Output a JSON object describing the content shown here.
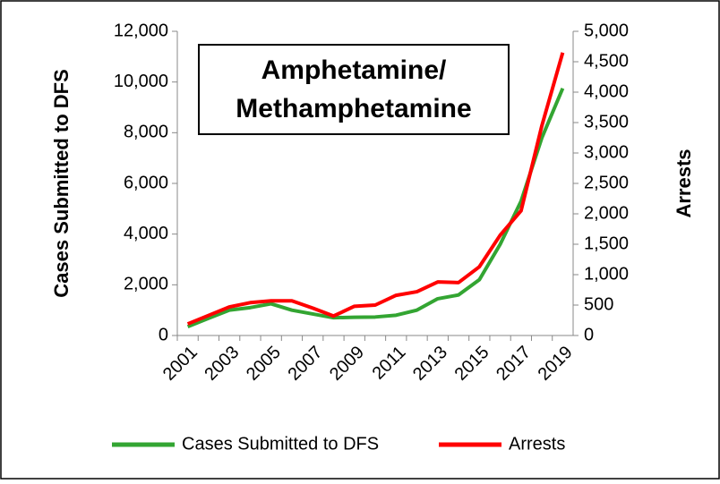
{
  "chart_data": {
    "type": "line",
    "title": [
      "Amphetamine/",
      "Methamphetamine"
    ],
    "y_label": "Cases Submitted to DFS",
    "y2_label": "Arrests",
    "categories": [
      "2001",
      null,
      "2003",
      null,
      "2005",
      null,
      "2007",
      null,
      "2009",
      null,
      "2011",
      null,
      "2013",
      null,
      "2015",
      null,
      "2017",
      null,
      "2019"
    ],
    "series": [
      {
        "name": "Cases Submitted to DFS",
        "color": "#33a532",
        "values": [
          350,
          680,
          1000,
          1100,
          1250,
          1000,
          850,
          700,
          720,
          730,
          800,
          1000,
          1450,
          1600,
          2200,
          3600,
          5300,
          7800,
          9750
        ]
      },
      {
        "name": "Arrests",
        "color": "#ff0000",
        "axis": "y2",
        "values": [
          190,
          330,
          470,
          540,
          570,
          570,
          450,
          320,
          480,
          500,
          660,
          720,
          880,
          870,
          1130,
          1650,
          2050,
          3450,
          4650
        ]
      }
    ],
    "ylim": [
      0,
      12000
    ],
    "yticks": [
      0,
      {
        "value": 2000,
        "label": "2,000"
      },
      {
        "value": 4000,
        "label": "4,000"
      },
      {
        "value": 6000,
        "label": "6,000"
      },
      {
        "value": 8000,
        "label": "8,000"
      },
      {
        "value": 10000,
        "label": "10,000"
      },
      {
        "value": 12000,
        "label": "12,000"
      }
    ],
    "y2lim": [
      0,
      5000
    ],
    "y2ticks": [
      0,
      500,
      {
        "value": 1000,
        "label": "1,000"
      },
      {
        "value": 1500,
        "label": "1,500"
      },
      {
        "value": 2000,
        "label": "2,000"
      },
      {
        "value": 2500,
        "label": "2,500"
      },
      {
        "value": 3000,
        "label": "3,000"
      },
      {
        "value": 3500,
        "label": "3,500"
      },
      {
        "value": 4000,
        "label": "4,000"
      },
      {
        "value": 4500,
        "label": "4,500"
      },
      {
        "value": 5000,
        "label": "5,000"
      }
    ],
    "legend": "bottom"
  }
}
